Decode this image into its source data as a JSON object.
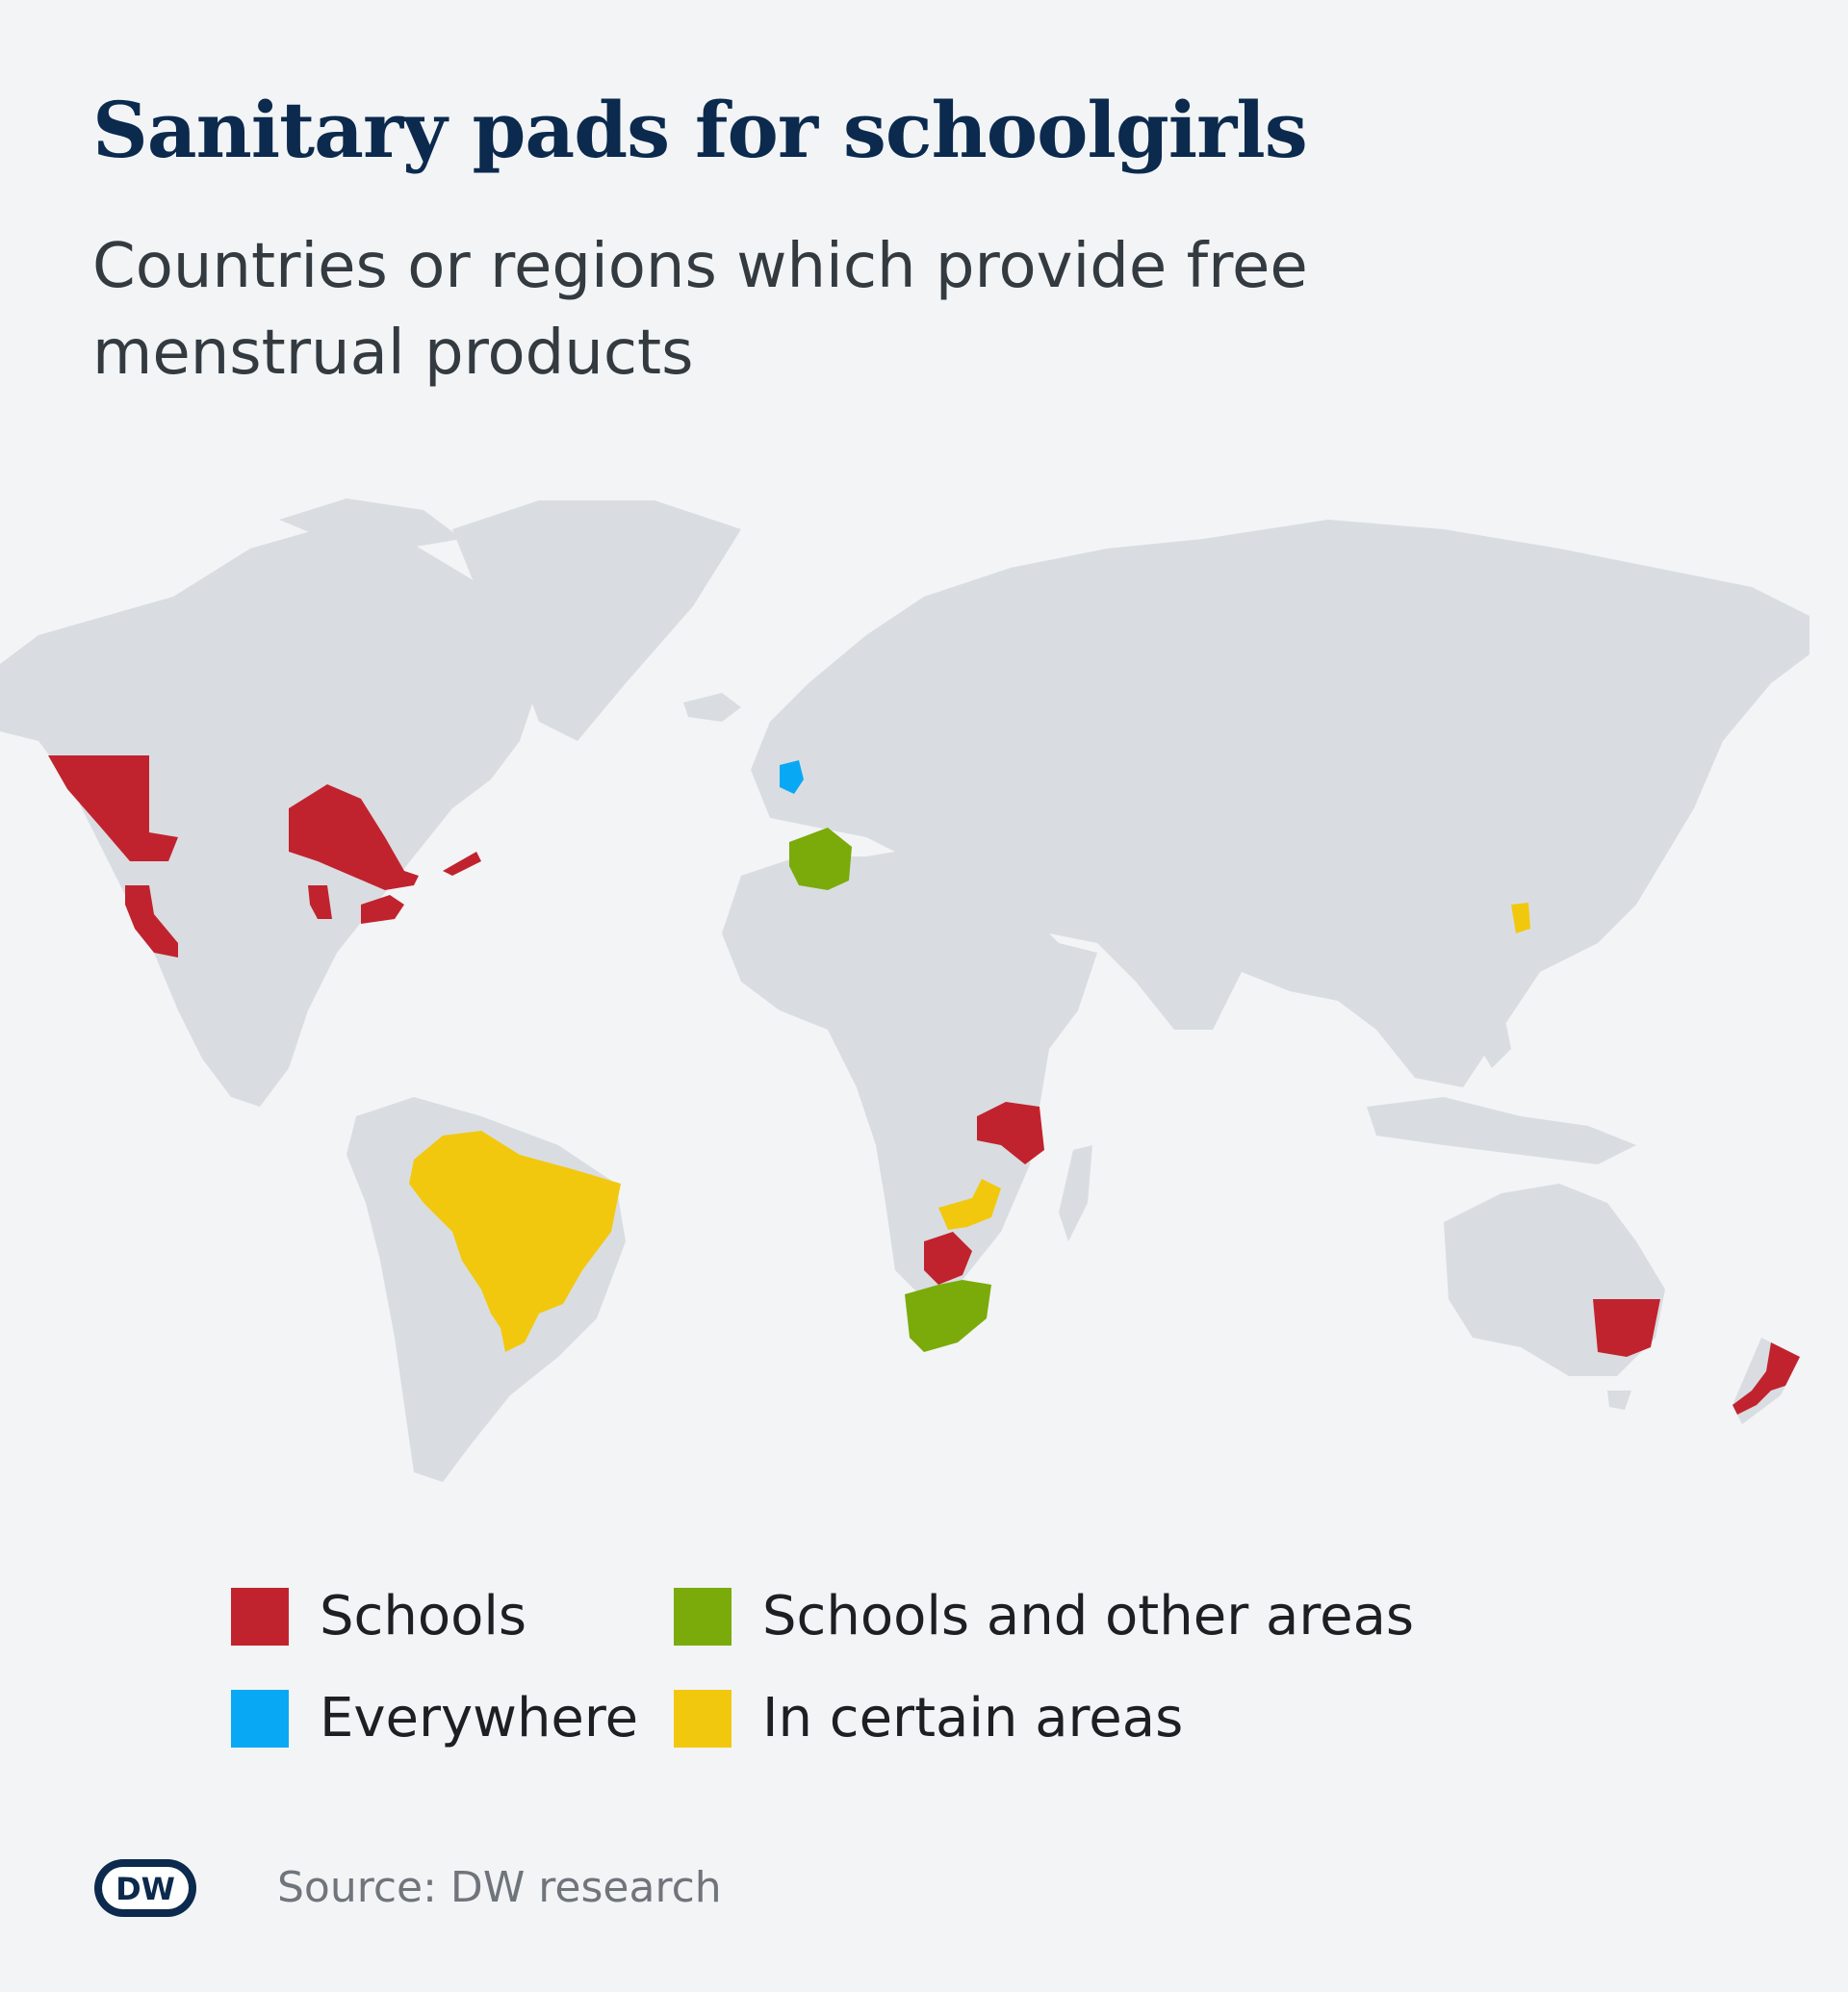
{
  "title": "Sanitary pads for schoolgirls",
  "subtitle": "Countries or regions which provide free menstrual products",
  "colors": {
    "background": "#f2f4f6",
    "land": "#d9dde1",
    "schools": "#c1232e",
    "everywhere": "#09a8f5",
    "schools_and_other_areas": "#7aab0a",
    "in_certain_areas": "#f2c80f"
  },
  "legend": [
    {
      "label": "Schools",
      "color": "#c1232e"
    },
    {
      "label": "Schools and other areas",
      "color": "#7aab0a"
    },
    {
      "label": "Everywhere",
      "color": "#09a8f5"
    },
    {
      "label": "In certain areas",
      "color": "#f2c80f"
    }
  ],
  "source": "Source: DW research",
  "logo_text": "DW"
}
